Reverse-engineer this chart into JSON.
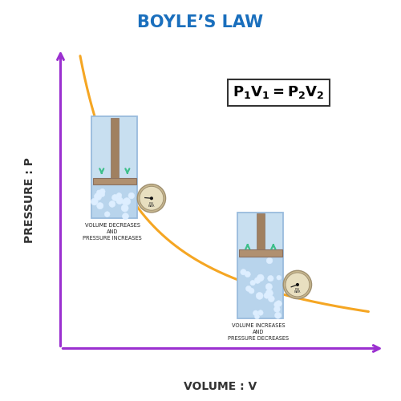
{
  "title": "BOYLE’S LAW",
  "title_color": "#1a6fbd",
  "xlabel": "VOLUME : V",
  "ylabel": "PRESSURE : P",
  "axis_color": "#9b30d0",
  "curve_color": "#f5a623",
  "background_color": "#ffffff",
  "label1": "VOLUME DECREASES\nAND\nPRESSURE INCREASES",
  "label2": "VOLUME INCREASES\nAND\nPRESSURE DECREASES",
  "cyl_wall_color": "#c8dff0",
  "cyl_edge_color": "#99bbdd",
  "liquid_color": "#b8d4ec",
  "bubble_color": "#ddeeff",
  "piston_color": "#b09070",
  "piston_edge": "#8a7060",
  "rod_color": "#a08060",
  "arrow_color": "#3dbf8a",
  "gauge_face": "#e8dfc0",
  "gauge_ring": "#c8b890",
  "gauge_edge": "#a09070",
  "formula_box_edge": "#333333",
  "axis_lw": 2.2,
  "curve_lw": 2.2
}
